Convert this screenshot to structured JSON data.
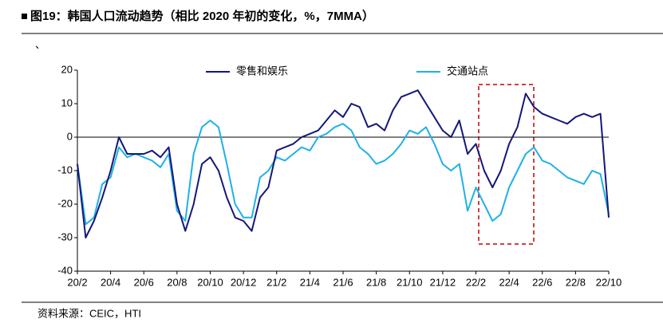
{
  "chart_data": {
    "type": "line",
    "title": "图19：韩国人口流动趋势（相比 2020 年初的变化，%，7MMA）",
    "mark": "、",
    "source": "资料来源：CEIC，HTI",
    "categories": [
      "20/2",
      null,
      null,
      null,
      "20/4",
      null,
      null,
      null,
      "20/6",
      null,
      null,
      null,
      "20/8",
      null,
      null,
      null,
      "20/10",
      null,
      null,
      null,
      "20/12",
      null,
      null,
      null,
      "21/2",
      null,
      null,
      null,
      "21/4",
      null,
      null,
      null,
      "21/6",
      null,
      null,
      null,
      "21/8",
      null,
      null,
      null,
      "21/10",
      null,
      null,
      null,
      "21/12",
      null,
      null,
      null,
      "22/2",
      null,
      null,
      null,
      "22/4",
      null,
      null,
      null,
      "22/6",
      null,
      null,
      null,
      "22/8",
      null,
      null,
      null,
      "22/10"
    ],
    "series": [
      {
        "name": "零售和娱乐",
        "color": "#14177a",
        "values": [
          -8,
          -30,
          -25,
          -18,
          -10,
          0,
          -5,
          -5,
          -5,
          -4,
          -6,
          -3,
          -20,
          -28,
          -20,
          -8,
          -6,
          -10,
          -18,
          -24,
          -25,
          -28,
          -18,
          -15,
          -4,
          -3,
          -2,
          0,
          1,
          2,
          5,
          8,
          6,
          10,
          9,
          3,
          4,
          2,
          8,
          12,
          13,
          14,
          10,
          6,
          2,
          0,
          5,
          -5,
          -2,
          -10,
          -15,
          -10,
          -2,
          3,
          13,
          9,
          7,
          6,
          5,
          4,
          6,
          7,
          6,
          7,
          -24
        ]
      },
      {
        "name": "交通站点",
        "color": "#1fb0e8",
        "values": [
          -8,
          -26,
          -24,
          -14,
          -12,
          -3,
          -6,
          -5,
          -6,
          -7,
          -9,
          -5,
          -22,
          -25,
          -5,
          3,
          5,
          3,
          -8,
          -20,
          -24,
          -24,
          -12,
          -10,
          -6,
          -7,
          -5,
          -3,
          -4,
          0,
          1,
          3,
          4,
          2,
          -3,
          -5,
          -8,
          -7,
          -5,
          -2,
          2,
          1,
          3,
          -2,
          -8,
          -10,
          -8,
          -22,
          -15,
          -20,
          -25,
          -23,
          -15,
          -10,
          -5,
          -3,
          -7,
          -8,
          -10,
          -12,
          -13,
          -14,
          -10,
          -11,
          -23
        ]
      }
    ],
    "ylim": [
      -40,
      20
    ],
    "yticks": [
      -40,
      -30,
      -20,
      -10,
      0,
      10,
      20
    ]
  }
}
